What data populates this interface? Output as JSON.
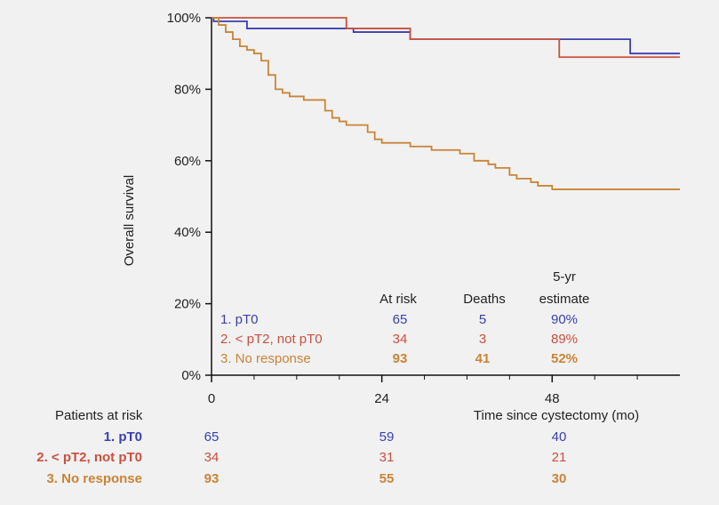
{
  "chart_data": {
    "type": "line",
    "xlabel": "Time since cystectomy (mo)",
    "ylabel": "Overall survival",
    "xlim": [
      0,
      66
    ],
    "ylim": [
      0,
      100
    ],
    "x_ticks": [
      "0",
      "24",
      "48"
    ],
    "y_ticks": [
      "0%",
      "20%",
      "40%",
      "60%",
      "80%",
      "100%"
    ],
    "step": true,
    "series": [
      {
        "name": "1. pT0",
        "color": "#3a3fae",
        "x": [
          0,
          0.3,
          5,
          20,
          28,
          59,
          66
        ],
        "y": [
          100,
          99,
          97,
          96,
          94,
          90,
          90
        ]
      },
      {
        "name": "2. < pT2, not pT0",
        "color": "#c9503e",
        "x": [
          0,
          19,
          28,
          49,
          66
        ],
        "y": [
          100,
          97,
          94,
          89,
          89
        ]
      },
      {
        "name": "3. No response",
        "color": "#c98436",
        "x": [
          0,
          1,
          2,
          3,
          4,
          5,
          6,
          7,
          8,
          9,
          10,
          11,
          13,
          16,
          17,
          18,
          19,
          22,
          23,
          24,
          28,
          31,
          35,
          37,
          39,
          40,
          42,
          43,
          45,
          46,
          48,
          66
        ],
        "y": [
          100,
          98,
          96,
          94,
          92,
          91,
          90,
          88,
          84,
          80,
          79,
          78,
          77,
          74,
          72,
          71,
          70,
          68,
          66,
          65,
          64,
          63,
          62,
          60,
          59,
          58,
          56,
          55,
          54,
          53,
          52,
          52
        ]
      }
    ],
    "legend_table": {
      "headers": [
        "At risk",
        "Deaths",
        "5-yr",
        "estimate"
      ],
      "rows": [
        {
          "label": "1. pT0",
          "at_risk": "65",
          "deaths": "5",
          "estimate": "90%"
        },
        {
          "label": "2. < pT2, not pT0",
          "at_risk": "34",
          "deaths": "3",
          "estimate": "89%"
        },
        {
          "label": "3. No response",
          "at_risk": "93",
          "deaths": "41",
          "estimate": "52%"
        }
      ]
    },
    "risk_table": {
      "title": "Patients at risk",
      "rows": [
        {
          "label": "1. pT0",
          "values": [
            "65",
            "59",
            "40"
          ]
        },
        {
          "label": "2. < pT2, not pT0",
          "values": [
            "34",
            "31",
            "21"
          ]
        },
        {
          "label": "3. No response",
          "values": [
            "93",
            "55",
            "30"
          ]
        }
      ]
    }
  }
}
